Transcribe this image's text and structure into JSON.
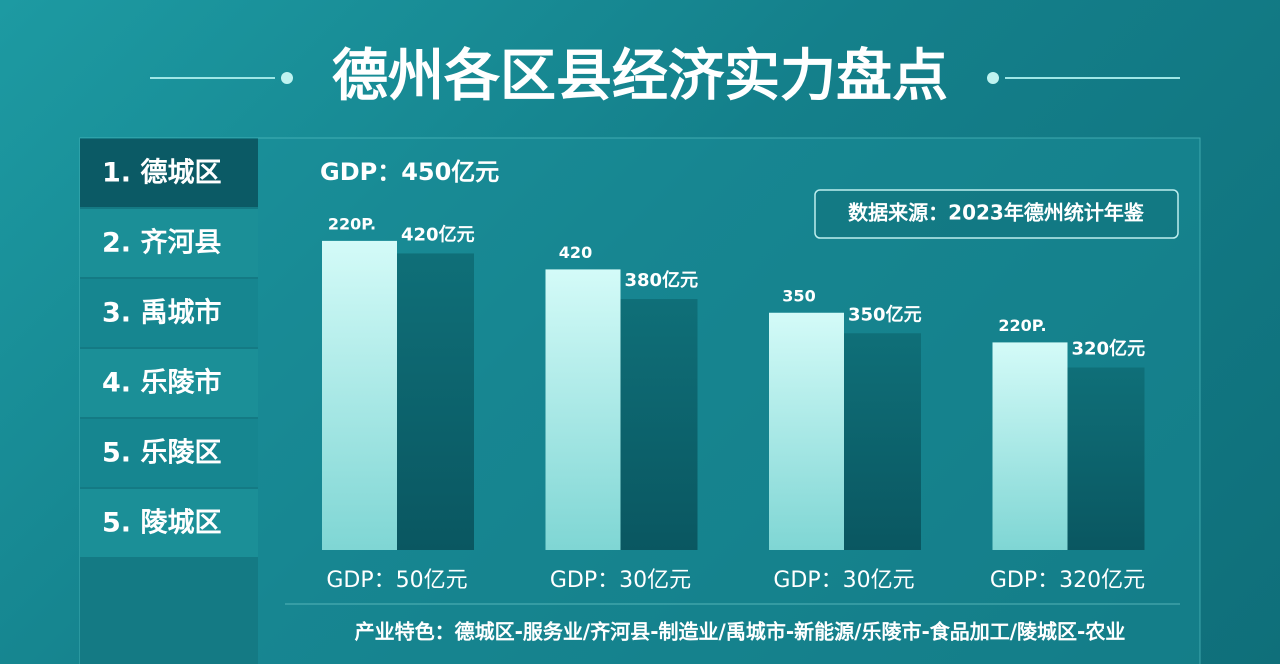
{
  "title": "德州各区县经济实力盘点",
  "districts": [
    "1. 德城区",
    "2. 齐河县",
    "3. 禹城市",
    "4. 乐陵市",
    "5. 乐陵区",
    "5. 陵城区"
  ],
  "chart_data": {
    "type": "bar",
    "categories": [
      null,
      null,
      null,
      null
    ],
    "series": [
      {
        "color": "#a8ebe8",
        "values": [
          431,
          406,
          368,
          342
        ]
      },
      {
        "color": "#0d6470",
        "values": [
          420,
          380,
          350,
          320
        ],
        "value_labels": [
          "420亿元",
          "380亿元",
          "350亿元",
          "320亿元"
        ]
      }
    ],
    "ylim": [
      160,
      480
    ],
    "top_label": "GDP：450亿元",
    "bar_notes": [
      "220P.",
      "420",
      "350",
      "220P."
    ],
    "bottom_labels": [
      "GDP：50亿元",
      "GDP：30亿元",
      "GDP：30亿元",
      "GDP：320亿元"
    ],
    "source": "数据来源：2023年德州统计年鉴",
    "footer": "产业特色：德城区-服务业/齐河县-制造业/禹城市-新能源/乐陵市-食品加工/陵城区-农业"
  }
}
